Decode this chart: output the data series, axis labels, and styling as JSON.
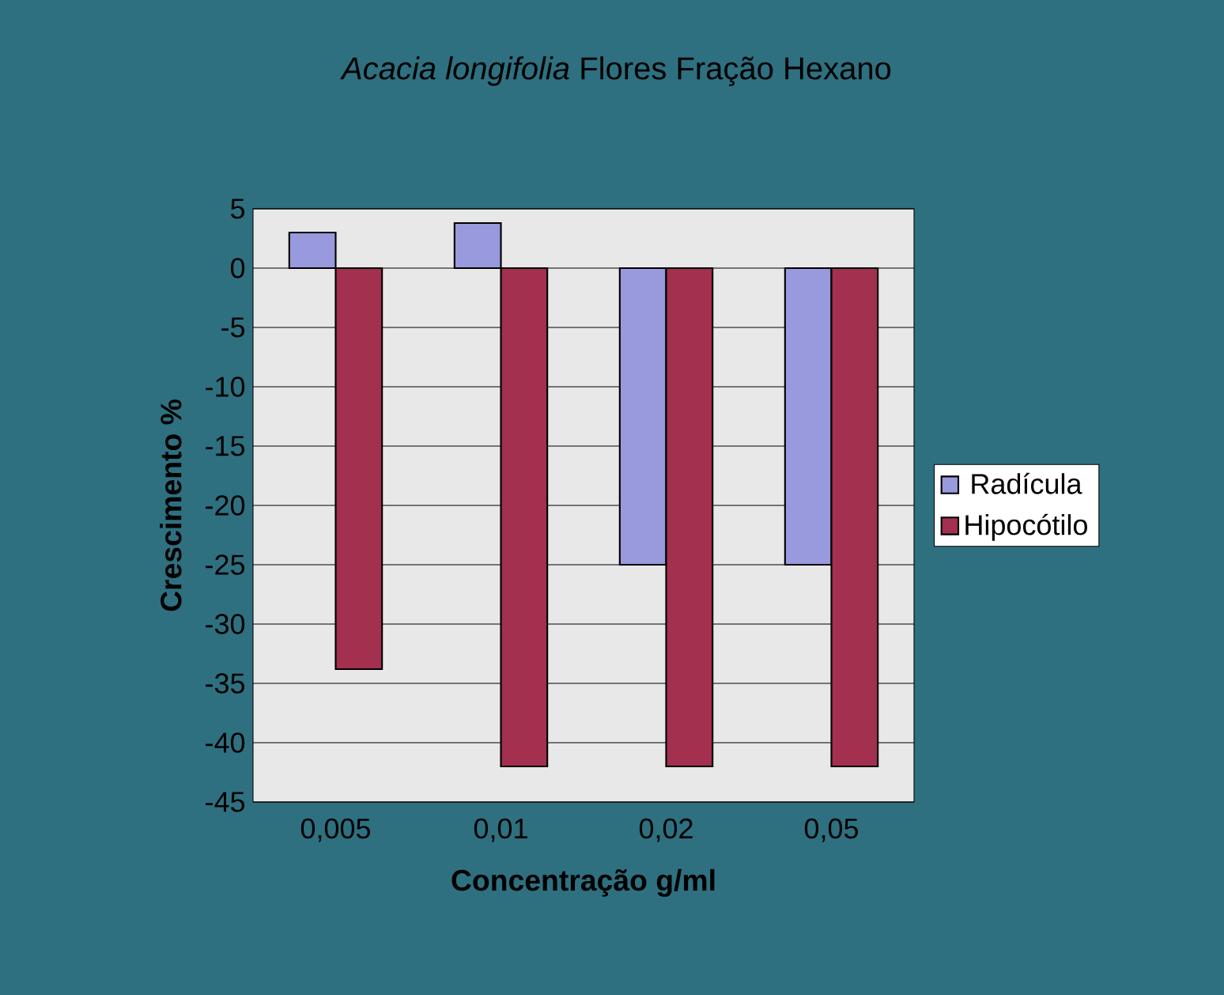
{
  "chart_data": {
    "type": "bar",
    "title": "*Acacia longifolia* Flores Fração Hexano",
    "xlabel": "Concentração g/ml",
    "ylabel": "Crescimento %",
    "categories": [
      "0,005",
      "0,01",
      "0,02",
      "0,05"
    ],
    "series": [
      {
        "name": "Radícula",
        "color": "#9999dd",
        "values": [
          3,
          3.8,
          -25,
          -25
        ]
      },
      {
        "name": "Hipocótilo",
        "color": "#a3304f",
        "values": [
          -33.8,
          -42,
          -42,
          -42
        ]
      }
    ],
    "ylim": [
      -45,
      5
    ],
    "yticks": [
      5,
      0,
      -5,
      -10,
      -15,
      -20,
      -25,
      -30,
      -35,
      -40,
      -45
    ],
    "grid": "y",
    "legend": "right"
  }
}
